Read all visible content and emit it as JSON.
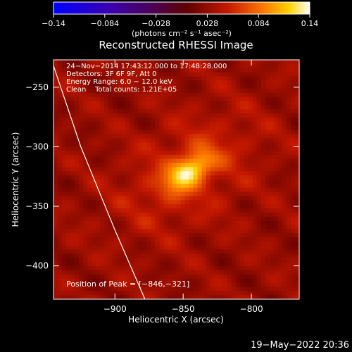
{
  "chart_data": {
    "type": "heatmap",
    "title": "Reconstructed RHESSI Image",
    "xlabel": "Heliocentric X (arcsec)",
    "ylabel": "Heliocentric Y (arcsec)",
    "xlim": [
      -945,
      -765
    ],
    "ylim": [
      -428,
      -227
    ],
    "xticks": [
      -900,
      -850,
      -800
    ],
    "xtick_labels": [
      "−900",
      "−850",
      "−800"
    ],
    "yticks": [
      -250,
      -300,
      -350,
      -400
    ],
    "ytick_labels": [
      "−250",
      "−300",
      "−350",
      "−400"
    ],
    "colorbar": {
      "min": -0.14,
      "max": 0.14,
      "ticks": [
        -0.14,
        -0.084,
        -0.028,
        0.028,
        0.084,
        0.14
      ],
      "tick_labels": [
        "−0.14",
        "−0.084",
        "−0.028",
        "0.028",
        "0.084",
        "0.14"
      ],
      "units": "(photons cm⁻² s⁻¹ asec⁻²)",
      "colormap": "blue-purple-red-yellow-white"
    },
    "source": {
      "peak_x": -846,
      "peak_y": -321,
      "peak_value": 0.14,
      "background_value": 0.03
    },
    "limb_curve": [
      [
        -945,
        -232
      ],
      [
        -925,
        -300
      ],
      [
        -900,
        -370
      ],
      [
        -878,
        -428
      ]
    ],
    "info_lines": [
      "24−Nov−2014 17:43:12.000 to 17:48:28.000",
      "Detectors: 3F 6F 9F, Att 0",
      "Energy Range: 6.0 − 12.0 keV",
      "Clean    Total counts: 1.21E+05"
    ],
    "peak_label": "Position of Peak = [−846,−321]",
    "timestamp": "19−May−2022 20:36"
  }
}
